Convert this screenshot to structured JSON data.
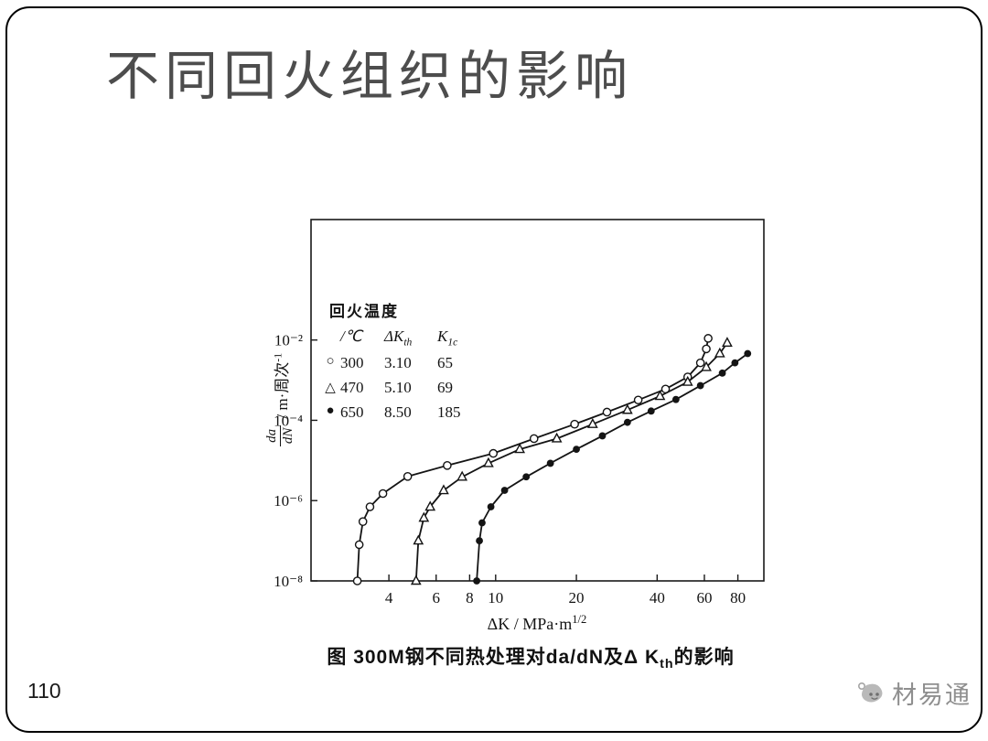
{
  "slide": {
    "title": "不同回火组织的影响",
    "page_number": "110",
    "watermark_text": "材易通"
  },
  "caption": {
    "pre": "图  300M钢不同热处理对da/dN及Δ K",
    "sub": "th",
    "post": "的影响"
  },
  "chart_data": {
    "type": "line",
    "x_scale": "log",
    "y_scale": "log",
    "xlabel_main": "ΔK / MPa·m",
    "xlabel_sup": "1/2",
    "ylabel_frac_top": "da",
    "ylabel_frac_bottom": "dN",
    "ylabel_unit": "/ m·周次",
    "ylabel_sup": "-1",
    "xlim": [
      2.05,
      100
    ],
    "ylim_exp": [
      -8,
      1
    ],
    "x_ticks": [
      4,
      6,
      8,
      10,
      20,
      40,
      60,
      80
    ],
    "y_tick_exps": [
      -2,
      -4,
      -6,
      -8
    ],
    "y_tick_labels": [
      "10⁻²",
      "10⁻⁴",
      "10⁻⁶",
      "10⁻⁸"
    ],
    "legend": {
      "title": "回火温度",
      "unit_header": "/℃",
      "col2_main": "ΔK",
      "col2_sub": "th",
      "col3_main": "K",
      "col3_sub": "1c"
    },
    "series": [
      {
        "name": "300",
        "marker": "circle-open",
        "delta_Kth": "3.10",
        "K1c": "65",
        "points": [
          [
            3.05,
            1e-08
          ],
          [
            3.1,
            8e-08
          ],
          [
            3.2,
            3e-07
          ],
          [
            3.4,
            7e-07
          ],
          [
            3.8,
            1.5e-06
          ],
          [
            4.7,
            4e-06
          ],
          [
            6.6,
            7.5e-06
          ],
          [
            9.8,
            1.5e-05
          ],
          [
            13.9,
            3.5e-05
          ],
          [
            19.7,
            8e-05
          ],
          [
            26,
            0.00016
          ],
          [
            34,
            0.00032
          ],
          [
            43,
            0.0006
          ],
          [
            52,
            0.0012
          ],
          [
            58,
            0.0027
          ],
          [
            61,
            0.006
          ],
          [
            62,
            0.011
          ]
        ]
      },
      {
        "name": "470",
        "marker": "triangle-open",
        "delta_Kth": "5.10",
        "K1c": "69",
        "points": [
          [
            5.05,
            1e-08
          ],
          [
            5.15,
            1e-07
          ],
          [
            5.4,
            3.7e-07
          ],
          [
            5.7,
            7e-07
          ],
          [
            6.4,
            1.8e-06
          ],
          [
            7.5,
            3.9e-06
          ],
          [
            9.4,
            8.5e-06
          ],
          [
            12.3,
            1.9e-05
          ],
          [
            16.9,
            3.5e-05
          ],
          [
            23,
            8e-05
          ],
          [
            31,
            0.00018
          ],
          [
            41,
            0.0004
          ],
          [
            52,
            0.0009
          ],
          [
            61,
            0.0021
          ],
          [
            68.5,
            0.0046
          ],
          [
            73,
            0.0085
          ]
        ]
      },
      {
        "name": "650",
        "marker": "circle-filled",
        "delta_Kth": "8.50",
        "K1c": "185",
        "points": [
          [
            8.5,
            1e-08
          ],
          [
            8.7,
            1e-07
          ],
          [
            8.9,
            2.8e-07
          ],
          [
            9.6,
            7e-07
          ],
          [
            10.8,
            1.8e-06
          ],
          [
            13,
            3.9e-06
          ],
          [
            16,
            8.5e-06
          ],
          [
            20,
            1.9e-05
          ],
          [
            25,
            4.1e-05
          ],
          [
            31,
            8.9e-05
          ],
          [
            38,
            0.00017
          ],
          [
            47,
            0.00033
          ],
          [
            58,
            0.00073
          ],
          [
            70,
            0.0015
          ],
          [
            78,
            0.0027
          ],
          [
            87,
            0.0046
          ]
        ]
      }
    ]
  }
}
